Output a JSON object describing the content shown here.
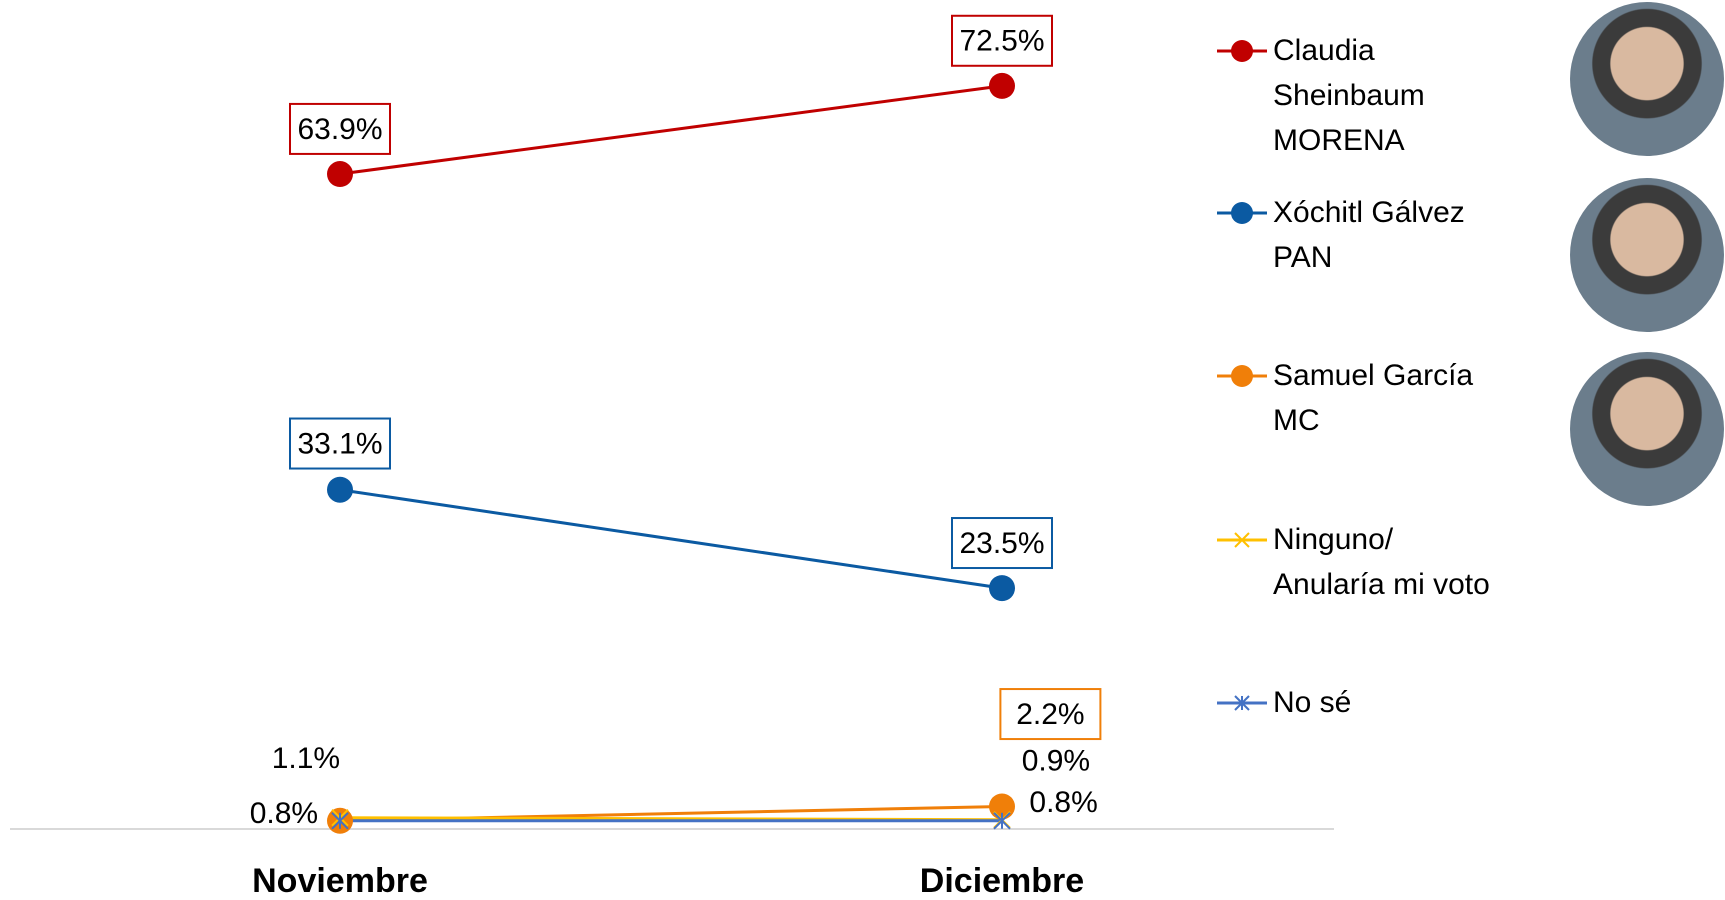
{
  "chart_data": {
    "type": "line",
    "categories": [
      "Noviembre",
      "Diciembre"
    ],
    "ylim": [
      0,
      80
    ],
    "series": [
      {
        "name": "Claudia\nSheinbaum\nMORENA",
        "color": "#c00000",
        "marker": "circle",
        "values": [
          63.9,
          72.5
        ],
        "value_labels": [
          "63.9%",
          "72.5%"
        ],
        "label_boxed": [
          true,
          true
        ]
      },
      {
        "name": "Xóchitl Gálvez\nPAN",
        "color": "#0b5aa2",
        "marker": "circle",
        "values": [
          33.1,
          23.5
        ],
        "value_labels": [
          "33.1%",
          "23.5%"
        ],
        "label_boxed": [
          true,
          true
        ]
      },
      {
        "name": "Samuel García\nMC",
        "color": "#f07f09",
        "marker": "circle",
        "values": [
          0.8,
          2.2
        ],
        "value_labels": [
          "0.8%",
          "2.2%"
        ],
        "label_boxed": [
          false,
          true
        ]
      },
      {
        "name": "Ninguno/\nAnularía mi voto",
        "color": "#ffc000",
        "marker": "x",
        "values": [
          1.1,
          0.9
        ],
        "value_labels": [
          "1.1%",
          "0.9%"
        ],
        "label_boxed": [
          false,
          false
        ]
      },
      {
        "name": "No sé",
        "color": "#4472c4",
        "marker": "star",
        "values": [
          0.8,
          0.8
        ],
        "value_labels": [
          null,
          "0.8%"
        ],
        "label_boxed": [
          false,
          false
        ]
      }
    ]
  }
}
